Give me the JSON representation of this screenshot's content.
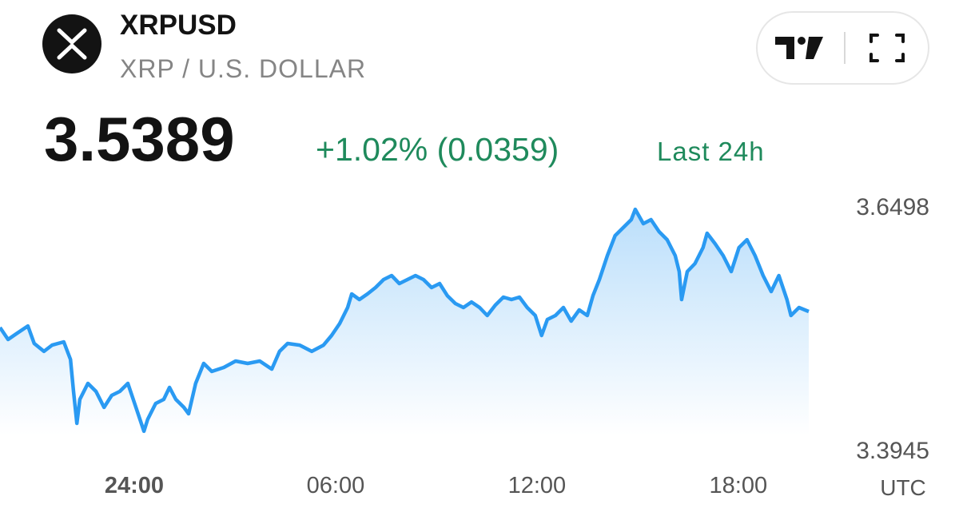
{
  "header": {
    "symbol": "XRPUSD",
    "pair_name": "XRP / U.S. DOLLAR",
    "price": "3.5389",
    "change": "+1.02% (0.0359)",
    "change_period": "Last 24h"
  },
  "chart_data": {
    "type": "line",
    "color": "#2a9af2",
    "grid": false,
    "timezone_label": "UTC",
    "x": [
      -4.0,
      -3.76,
      -3.52,
      -3.17,
      -2.98,
      -2.69,
      -2.45,
      -2.1,
      -1.9,
      -1.81,
      -1.71,
      -1.62,
      -1.38,
      -1.14,
      -0.9,
      -0.67,
      -0.43,
      -0.19,
      0.05,
      0.29,
      0.4,
      0.64,
      0.88,
      1.05,
      1.24,
      1.48,
      1.62,
      1.83,
      2.07,
      2.31,
      2.67,
      3.02,
      3.38,
      3.74,
      4.1,
      4.33,
      4.57,
      4.93,
      5.29,
      5.64,
      5.88,
      6.12,
      6.36,
      6.48,
      6.71,
      6.95,
      7.19,
      7.43,
      7.67,
      7.9,
      8.14,
      8.38,
      8.62,
      8.86,
      9.1,
      9.33,
      9.57,
      9.81,
      10.05,
      10.29,
      10.52,
      10.76,
      11.0,
      11.24,
      11.48,
      11.71,
      11.95,
      12.14,
      12.31,
      12.55,
      12.79,
      13.02,
      13.26,
      13.5,
      13.67,
      13.86,
      14.1,
      14.33,
      14.57,
      14.81,
      14.93,
      15.17,
      15.4,
      15.64,
      15.88,
      16.12,
      16.24,
      16.31,
      16.48,
      16.71,
      16.95,
      17.07,
      17.31,
      17.55,
      17.79,
      18.02,
      18.26,
      18.5,
      18.74,
      18.98,
      19.21,
      19.45,
      19.57,
      19.81,
      20.1
    ],
    "values": [
      3.5226,
      3.51,
      3.5159,
      3.5242,
      3.5058,
      3.4975,
      3.5041,
      3.5075,
      3.4891,
      3.4556,
      3.4221,
      3.4472,
      3.464,
      3.4556,
      3.4389,
      3.4514,
      3.4556,
      3.464,
      3.4389,
      3.4138,
      3.4263,
      3.443,
      3.4472,
      3.4598,
      3.4472,
      3.4389,
      3.4322,
      3.464,
      3.4849,
      3.4765,
      3.4807,
      3.4874,
      3.4849,
      3.4874,
      3.479,
      3.4975,
      3.5058,
      3.5041,
      3.4975,
      3.5041,
      3.5142,
      3.5267,
      3.5435,
      3.5577,
      3.5519,
      3.5577,
      3.5644,
      3.5728,
      3.577,
      3.5686,
      3.5728,
      3.577,
      3.5728,
      3.5644,
      3.5686,
      3.556,
      3.5477,
      3.5435,
      3.5493,
      3.5435,
      3.5351,
      3.546,
      3.5544,
      3.5519,
      3.5544,
      3.5435,
      3.5351,
      3.5142,
      3.5309,
      3.5351,
      3.5435,
      3.5293,
      3.541,
      3.5351,
      3.556,
      3.5728,
      3.5979,
      3.6188,
      3.6272,
      3.6356,
      3.6464,
      3.6314,
      3.6356,
      3.623,
      3.6146,
      3.5979,
      3.5812,
      3.5519,
      3.5812,
      3.5895,
      3.6063,
      3.6213,
      3.6104,
      3.5979,
      3.5812,
      3.6063,
      3.6146,
      3.5979,
      3.577,
      3.5602,
      3.577,
      3.5519,
      3.5351,
      3.5435,
      3.5393
    ],
    "xlim": [
      -4.0,
      20.1
    ],
    "xticks": [
      {
        "value": 0,
        "label": "24:00"
      },
      {
        "value": 6,
        "label": "06:00"
      },
      {
        "value": 12,
        "label": "12:00"
      },
      {
        "value": 18,
        "label": "18:00"
      }
    ],
    "ylim": [
      3.3945,
      3.6498
    ],
    "yticks": [
      3.3945,
      3.6498
    ]
  }
}
